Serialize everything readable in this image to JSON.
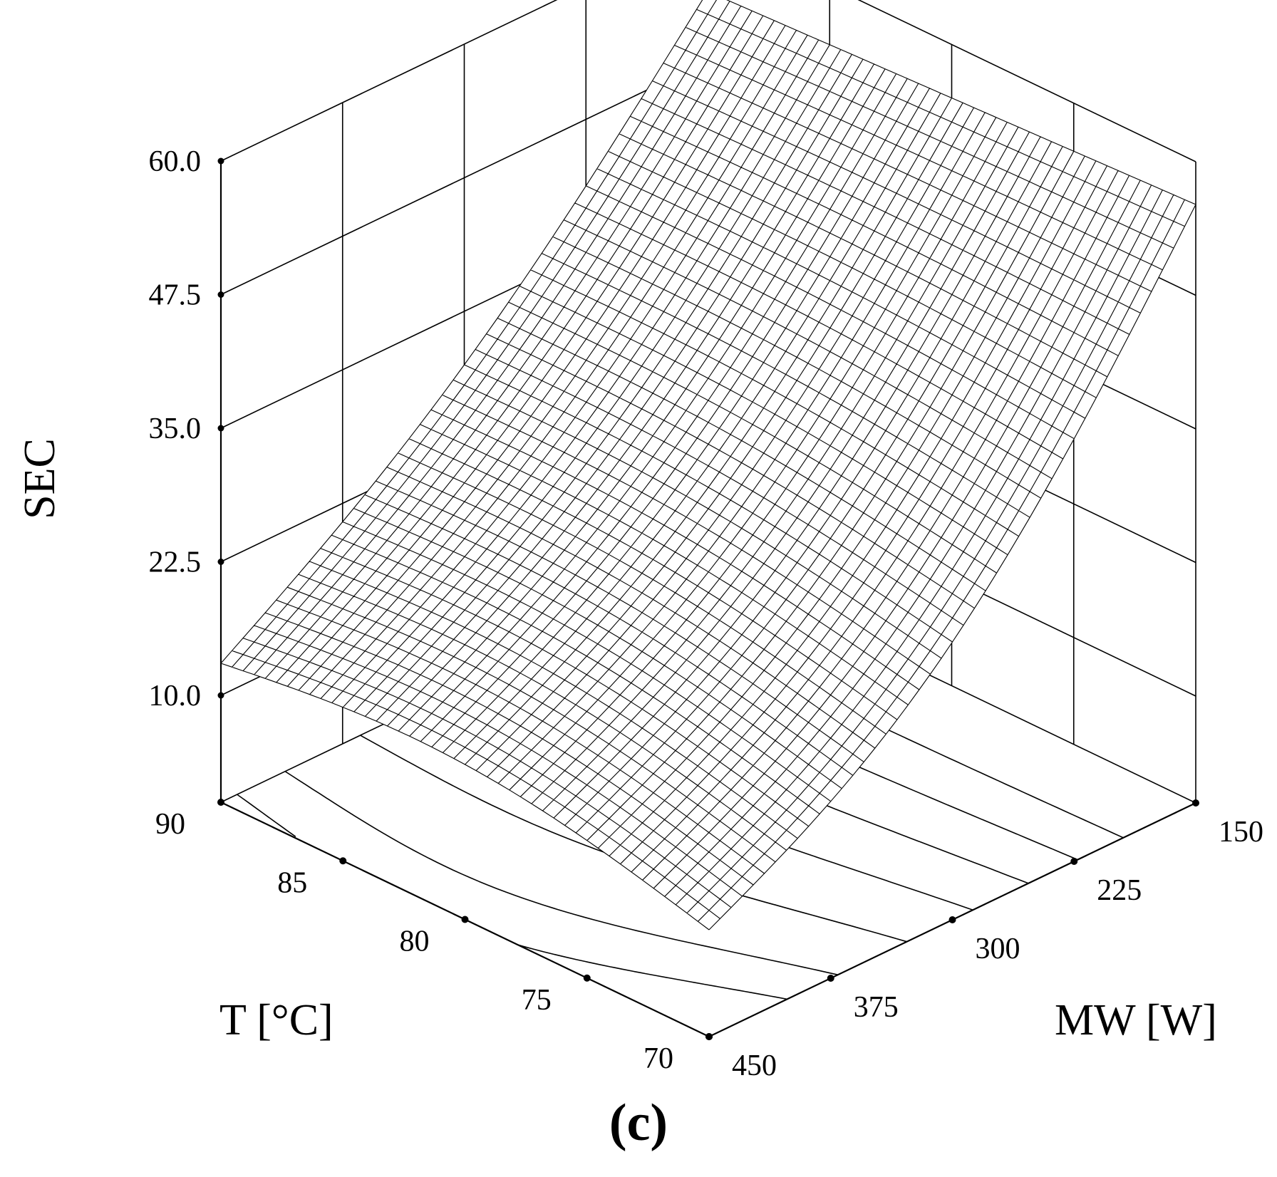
{
  "panel_label": "(c)",
  "chart_data": {
    "type": "surface",
    "title": "",
    "zlabel": "SEC",
    "x_axis": {
      "label": "T [°C]",
      "ticks": [
        90,
        85,
        80,
        75,
        70
      ],
      "range": [
        70,
        90
      ]
    },
    "y_axis": {
      "label": "MW [W]",
      "ticks": [
        450,
        375,
        300,
        225,
        150
      ],
      "range": [
        150,
        450
      ]
    },
    "z_axis": {
      "label": "SEC",
      "ticks": [
        "10.0",
        "22.5",
        "35.0",
        "47.5",
        "60.0"
      ],
      "range": [
        0,
        60
      ]
    },
    "surface_corners": [
      {
        "T": 90,
        "MW": 450,
        "SEC": 13
      },
      {
        "T": 90,
        "MW": 150,
        "SEC": 54
      },
      {
        "T": 70,
        "MW": 450,
        "SEC": 10
      },
      {
        "T": 70,
        "MW": 150,
        "SEC": 56
      }
    ],
    "grid": true,
    "floor_contours": true,
    "wireframe": true
  }
}
